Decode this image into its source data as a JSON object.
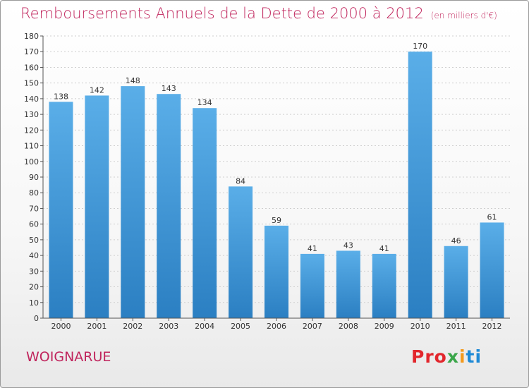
{
  "title": "Remboursements Annuels de la Dette de 2000 à 2012",
  "unit": "(en milliers d'€)",
  "commune": "WOIGNARUE",
  "logo": {
    "p1": "Pro",
    "p2": "x",
    "p3": "i",
    "p4": "ti"
  },
  "colors": {
    "title": "#c0245c",
    "bar_top": "#5aaee8",
    "bar_bottom": "#2b7fc2"
  },
  "chart_data": {
    "type": "bar",
    "title": "Remboursements Annuels de la Dette de 2000 à 2012",
    "xlabel": "",
    "ylabel": "",
    "ylim": [
      0,
      180
    ],
    "yticks": [
      0,
      10,
      20,
      30,
      40,
      50,
      60,
      70,
      80,
      90,
      100,
      110,
      120,
      130,
      140,
      150,
      160,
      170,
      180
    ],
    "grid": true,
    "categories": [
      "2000",
      "2001",
      "2002",
      "2003",
      "2004",
      "2005",
      "2006",
      "2007",
      "2008",
      "2009",
      "2010",
      "2011",
      "2012"
    ],
    "values": [
      138,
      142,
      148,
      143,
      134,
      84,
      59,
      41,
      43,
      41,
      170,
      46,
      61
    ]
  }
}
